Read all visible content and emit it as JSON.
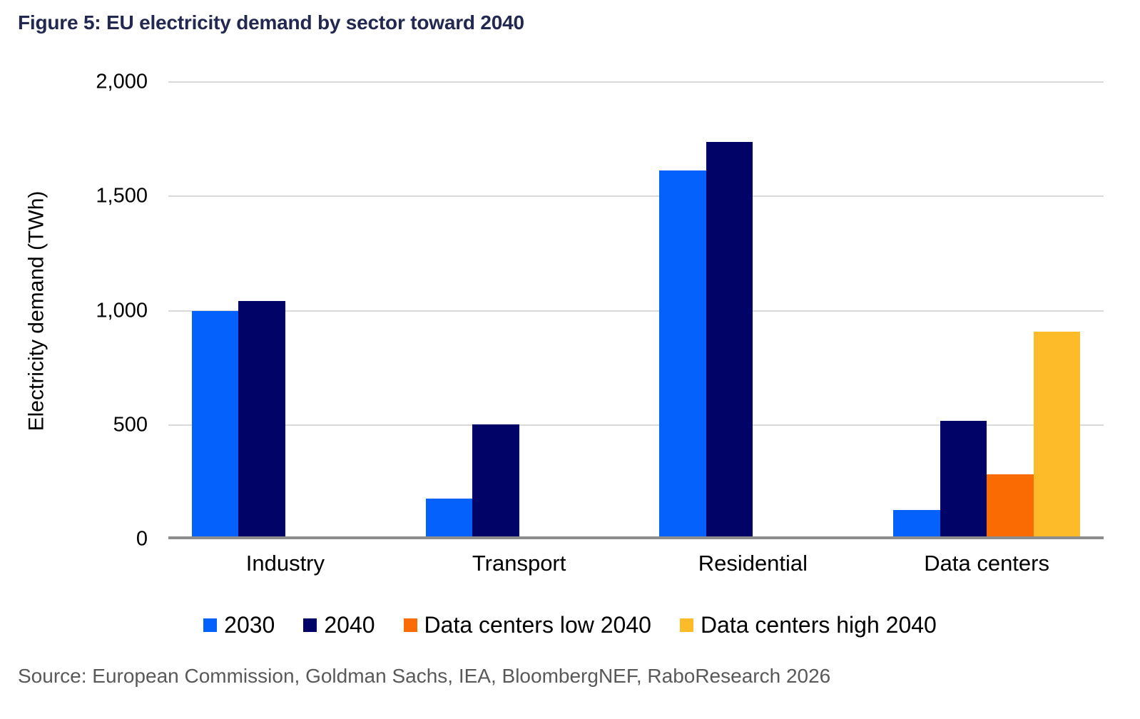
{
  "title": "Figure 5: EU electricity demand by sector toward 2040",
  "source": "Source: European Commission, Goldman Sachs, IEA, BloombergNEF, RaboResearch 2026",
  "colors": {
    "title_text": "#232850",
    "axis_line": "#8C8C8C",
    "gridline": "#D9D9D9",
    "axis_text": "#000000",
    "source_text": "#595959",
    "series_2030": "#0561FC",
    "series_2040": "#020366",
    "series_dc_low": "#FB6B04",
    "series_dc_high": "#FDBB2A"
  },
  "chart_data": {
    "type": "bar",
    "title": "Figure 5: EU electricity demand by sector toward 2040",
    "categories": [
      "Industry",
      "Transport",
      "Residential",
      "Data centers"
    ],
    "series": [
      {
        "name": "2030",
        "color": "#0561FC",
        "values": [
          985,
          165,
          1600,
          115
        ]
      },
      {
        "name": "2040",
        "color": "#020366",
        "values": [
          1030,
          490,
          1725,
          505
        ]
      },
      {
        "name": "Data centers low 2040",
        "color": "#FB6B04",
        "values": [
          null,
          null,
          null,
          270
        ]
      },
      {
        "name": "Data centers high 2040",
        "color": "#FDBB2A",
        "values": [
          null,
          null,
          null,
          895
        ]
      }
    ],
    "xlabel": "",
    "ylabel": "Electricity demand (TWh)",
    "ylim": [
      0,
      2000
    ],
    "yticks": [
      0,
      500,
      1000,
      1500,
      2000
    ],
    "ytick_labels": [
      "0",
      "500",
      "1,000",
      "1,500",
      "2,000"
    ],
    "grid": true,
    "legend_position": "bottom",
    "units": "TWh"
  }
}
